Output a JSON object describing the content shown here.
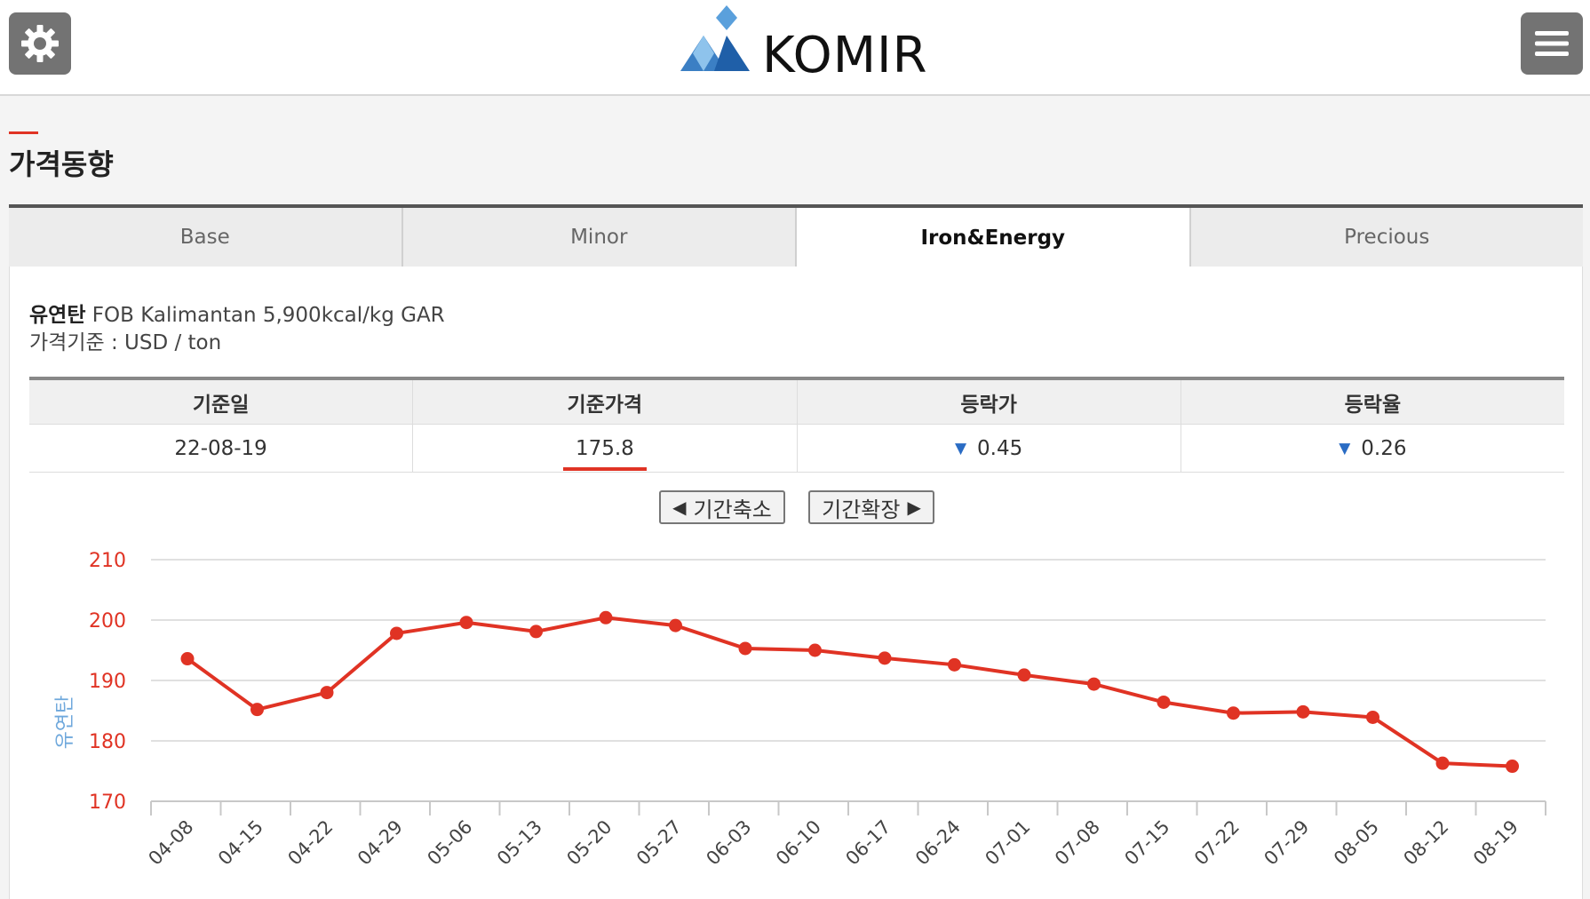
{
  "header": {
    "logo_text": "KOMIR",
    "settings_icon": "gear-icon",
    "menu_icon": "hamburger-icon"
  },
  "page": {
    "title": "가격동향"
  },
  "tabs": [
    {
      "label": "Base",
      "active": false
    },
    {
      "label": "Minor",
      "active": false
    },
    {
      "label": "Iron&Energy",
      "active": true
    },
    {
      "label": "Precious",
      "active": false
    }
  ],
  "info": {
    "name_bold": "유연탄",
    "name_rest": "FOB Kalimantan 5,900kcal/kg GAR",
    "basis": "가격기준 : USD / ton"
  },
  "table": {
    "headers": [
      "기준일",
      "기준가격",
      "등락가",
      "등락율"
    ],
    "row": {
      "date": "22-08-19",
      "price": "175.8",
      "change": "0.45",
      "change_rate": "0.26"
    }
  },
  "buttons": {
    "shrink": "기간축소",
    "expand": "기간확장"
  },
  "colors": {
    "accent": "#e03324",
    "down": "#2a6cc4",
    "axis_label": "#6fa8dc"
  },
  "chart_data": {
    "type": "line",
    "ylabel": "유연탄",
    "ylim": [
      170,
      210
    ],
    "yticks": [
      170,
      180,
      190,
      200,
      210
    ],
    "grid": true,
    "categories": [
      "04-08",
      "04-15",
      "04-22",
      "04-29",
      "05-06",
      "05-13",
      "05-20",
      "05-27",
      "06-03",
      "06-10",
      "06-17",
      "06-24",
      "07-01",
      "07-08",
      "07-15",
      "07-22",
      "07-29",
      "08-05",
      "08-12",
      "08-19"
    ],
    "series": [
      {
        "values": [
          193.6,
          185.2,
          188.0,
          197.8,
          199.6,
          198.1,
          200.4,
          199.1,
          195.3,
          195.0,
          193.7,
          192.6,
          190.9,
          189.4,
          186.4,
          184.6,
          184.8,
          183.9,
          176.3,
          175.8
        ]
      }
    ]
  }
}
